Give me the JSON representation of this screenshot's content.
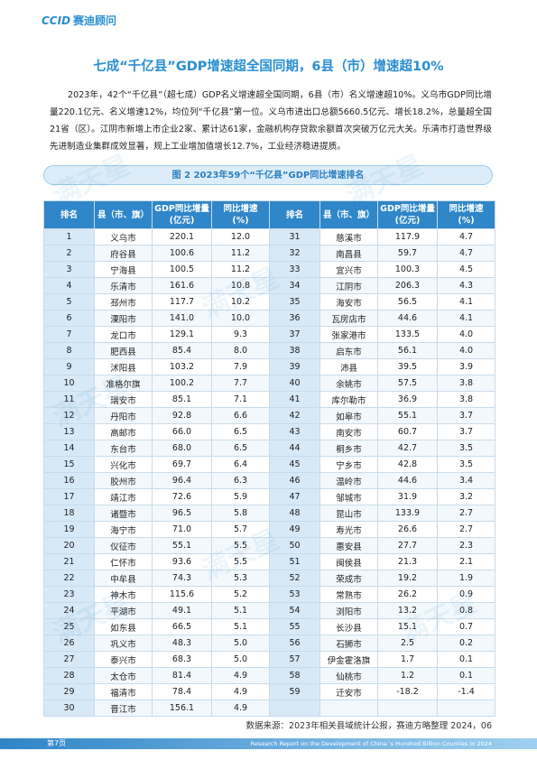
{
  "header": {
    "logo": "CCID",
    "brand": "赛迪顾问"
  },
  "title": "七成“千亿县”GDP增速超全国同期，6县（市）增速超10%",
  "paragraph": "2023年，42个“千亿县”（超七成）GDP名义增速超全国同期，6县（市）名义增速超10%。义乌市GDP同比增量220.1亿元、名义增速12%，均位列“千亿县”第一位。义乌市进出口总额5660.5亿元、增长18.2%，总量超全国21省（区）。江阴市新增上市企业2家、累计达61家，金融机构存贷款余额首次突破万亿元大关。乐清市打造世界级先进制造业集群成效显著，规上工业增加值增长12.7%，工业经济稳进提质。",
  "watermark": "满天星",
  "table": {
    "caption": "图 2  2023年59个“千亿县”GDP同比增速排名",
    "columns": [
      [
        "排名"
      ],
      [
        "县（市、旗）"
      ],
      [
        "GDP同比增量",
        "(亿元)"
      ],
      [
        "同比增速",
        "(%)"
      ]
    ],
    "rows": [
      [
        "1",
        "义乌市",
        "220.1",
        "12.0"
      ],
      [
        "2",
        "府谷县",
        "100.6",
        "11.2"
      ],
      [
        "3",
        "宁海县",
        "100.5",
        "11.2"
      ],
      [
        "4",
        "乐清市",
        "161.6",
        "10.8"
      ],
      [
        "5",
        "邳州市",
        "117.7",
        "10.2"
      ],
      [
        "6",
        "溧阳市",
        "141.0",
        "10.0"
      ],
      [
        "7",
        "龙口市",
        "129.1",
        "9.3"
      ],
      [
        "8",
        "肥西县",
        "85.4",
        "8.0"
      ],
      [
        "9",
        "沭阳县",
        "103.2",
        "7.9"
      ],
      [
        "10",
        "准格尔旗",
        "100.2",
        "7.7"
      ],
      [
        "11",
        "瑞安市",
        "85.1",
        "7.1"
      ],
      [
        "12",
        "丹阳市",
        "92.8",
        "6.6"
      ],
      [
        "13",
        "高邮市",
        "66.0",
        "6.5"
      ],
      [
        "14",
        "东台市",
        "68.0",
        "6.5"
      ],
      [
        "15",
        "兴化市",
        "69.7",
        "6.4"
      ],
      [
        "16",
        "胶州市",
        "96.4",
        "6.3"
      ],
      [
        "17",
        "靖江市",
        "72.6",
        "5.9"
      ],
      [
        "18",
        "诸暨市",
        "96.5",
        "5.8"
      ],
      [
        "19",
        "海宁市",
        "71.0",
        "5.7"
      ],
      [
        "20",
        "仪征市",
        "55.1",
        "5.5"
      ],
      [
        "21",
        "仁怀市",
        "93.6",
        "5.5"
      ],
      [
        "22",
        "中牟县",
        "74.3",
        "5.3"
      ],
      [
        "23",
        "神木市",
        "115.6",
        "5.2"
      ],
      [
        "24",
        "平湖市",
        "49.1",
        "5.1"
      ],
      [
        "25",
        "如东县",
        "66.5",
        "5.1"
      ],
      [
        "26",
        "巩义市",
        "48.3",
        "5.0"
      ],
      [
        "27",
        "泰兴市",
        "68.3",
        "5.0"
      ],
      [
        "28",
        "太仓市",
        "81.4",
        "4.9"
      ],
      [
        "29",
        "福清市",
        "78.4",
        "4.9"
      ],
      [
        "30",
        "晋江市",
        "156.1",
        "4.9"
      ],
      [
        "31",
        "慈溪市",
        "117.9",
        "4.7"
      ],
      [
        "32",
        "南昌县",
        "59.7",
        "4.7"
      ],
      [
        "33",
        "宜兴市",
        "100.3",
        "4.5"
      ],
      [
        "34",
        "江阴市",
        "206.3",
        "4.3"
      ],
      [
        "35",
        "海安市",
        "56.5",
        "4.1"
      ],
      [
        "36",
        "瓦房店市",
        "44.6",
        "4.1"
      ],
      [
        "37",
        "张家港市",
        "133.5",
        "4.0"
      ],
      [
        "38",
        "启东市",
        "56.1",
        "4.0"
      ],
      [
        "39",
        "沛县",
        "39.5",
        "3.9"
      ],
      [
        "40",
        "余姚市",
        "57.5",
        "3.8"
      ],
      [
        "41",
        "库尔勒市",
        "36.9",
        "3.8"
      ],
      [
        "42",
        "如皋市",
        "55.1",
        "3.7"
      ],
      [
        "43",
        "南安市",
        "60.7",
        "3.7"
      ],
      [
        "44",
        "桐乡市",
        "42.7",
        "3.5"
      ],
      [
        "45",
        "宁乡市",
        "42.8",
        "3.5"
      ],
      [
        "46",
        "温岭市",
        "44.6",
        "3.4"
      ],
      [
        "47",
        "邹城市",
        "31.9",
        "3.2"
      ],
      [
        "48",
        "昆山市",
        "133.9",
        "2.7"
      ],
      [
        "49",
        "寿光市",
        "26.6",
        "2.7"
      ],
      [
        "50",
        "惠安县",
        "27.7",
        "2.3"
      ],
      [
        "51",
        "闽侯县",
        "21.3",
        "2.1"
      ],
      [
        "52",
        "荣成市",
        "19.2",
        "1.9"
      ],
      [
        "53",
        "常熟市",
        "26.2",
        "0.9"
      ],
      [
        "54",
        "浏阳市",
        "13.2",
        "0.8"
      ],
      [
        "55",
        "长沙县",
        "15.1",
        "0.7"
      ],
      [
        "56",
        "石狮市",
        "2.5",
        "0.2"
      ],
      [
        "57",
        "伊金霍洛旗",
        "1.7",
        "0.1"
      ],
      [
        "58",
        "仙桃市",
        "1.2",
        "0.1"
      ],
      [
        "59",
        "迁安市",
        "-18.2",
        "-1.4"
      ]
    ]
  },
  "footer": {
    "source": "数据来源：2023年相关县域统计公报，赛迪方略整理  2024，06",
    "english": "Research Report on the Development of China 's Hundred Billion Counties in 2024",
    "page": "第7页"
  }
}
